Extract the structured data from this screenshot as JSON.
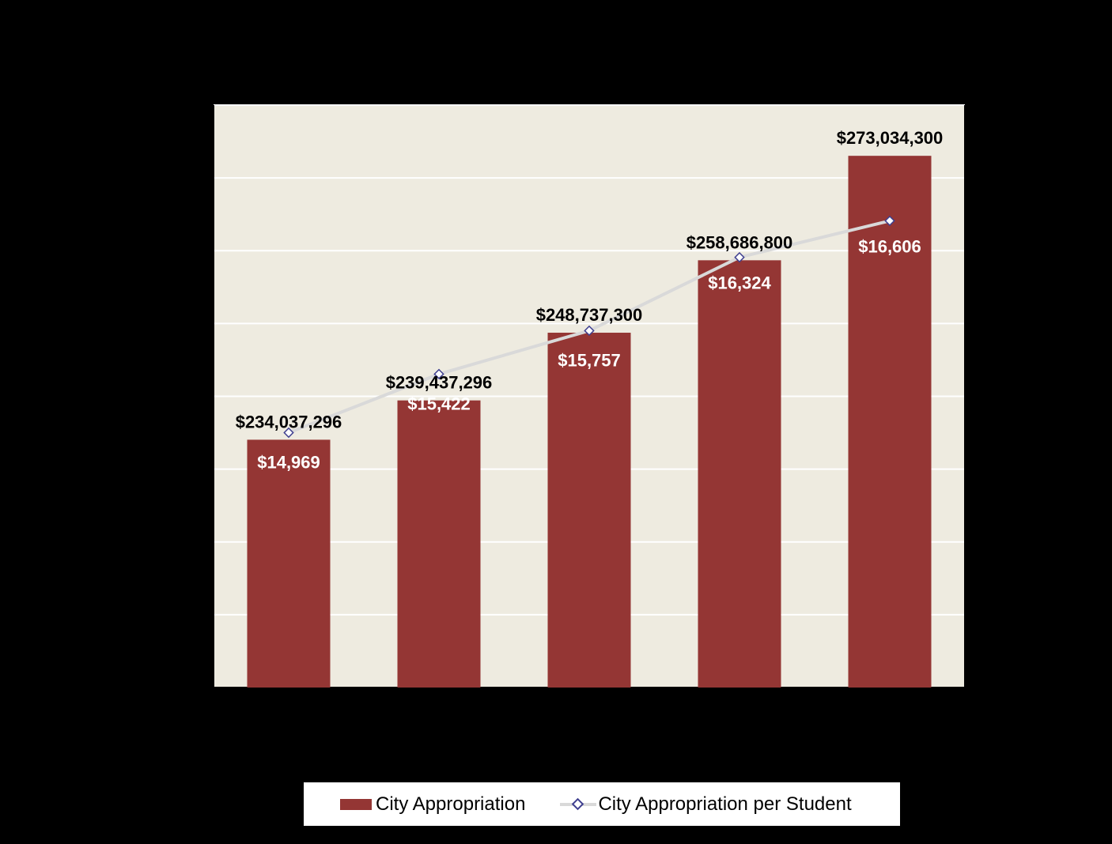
{
  "chart_data": {
    "type": "bar",
    "categories": [
      "",
      "",
      "",
      "",
      ""
    ],
    "series": [
      {
        "name": "City Appropriation",
        "type": "bar",
        "axis": "left",
        "color": "#943634",
        "values": [
          234037296,
          239437296,
          248737300,
          258686800,
          273034300
        ],
        "labels": [
          "$234,037,296",
          "$239,437,296",
          "$248,737,300",
          "$258,686,800",
          "$273,034,300"
        ]
      },
      {
        "name": "City Appropriation per Student",
        "type": "line",
        "axis": "right",
        "color": "#d9d9d9",
        "marker_color": "#3f3f8f",
        "values": [
          14969,
          15422,
          15757,
          16324,
          16606
        ],
        "labels": [
          "$14,969",
          "$15,422",
          "$15,757",
          "$16,324",
          "$16,606"
        ]
      }
    ],
    "y_left": {
      "range": [
        200000000,
        280000000
      ],
      "gridlines": 8
    },
    "y_right": {
      "range": [
        13000000,
        17500000
      ],
      "scale_note": "in dollars per student",
      "ticks": 9
    },
    "plot_background": "#eeebe0",
    "grid": true,
    "legend": "bottom"
  }
}
